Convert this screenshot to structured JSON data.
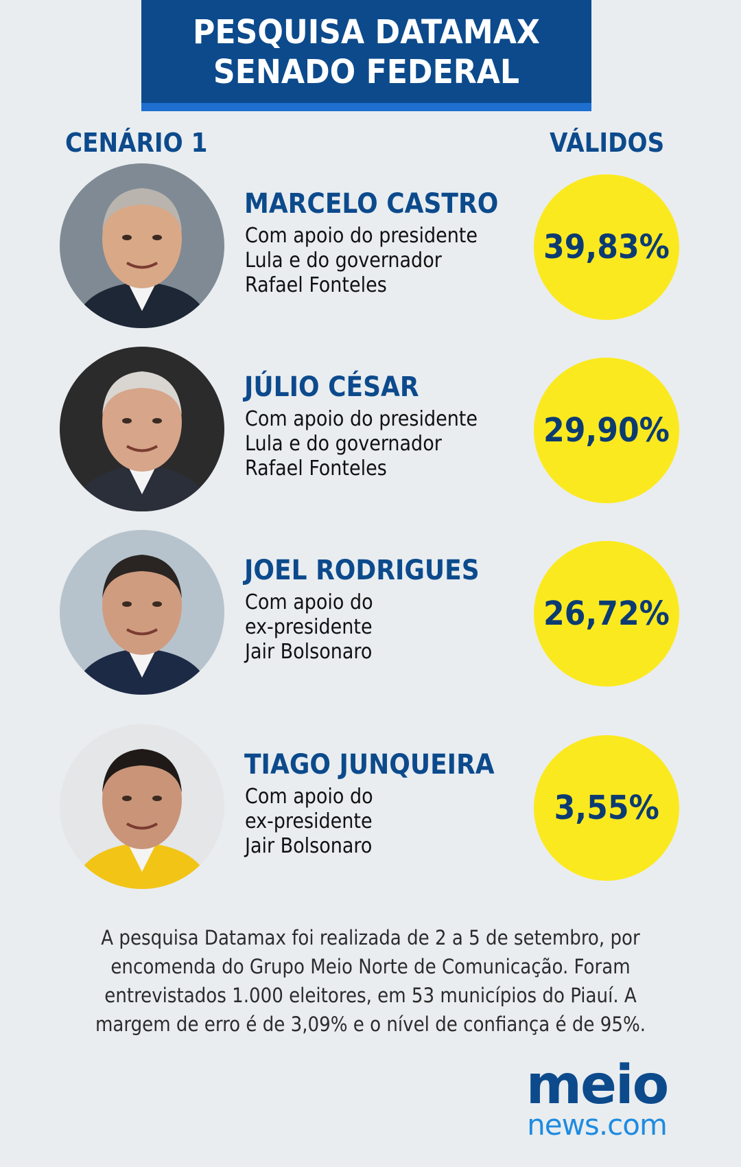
{
  "header": {
    "line1": "PESQUISA DATAMAX",
    "line2": "SENADO FEDERAL"
  },
  "columns": {
    "left": "CENÁRIO 1",
    "right": "VÁLIDOS"
  },
  "chart_data": {
    "type": "table",
    "title": "PESQUISA DATAMAX SENADO FEDERAL",
    "subtitle": "CENÁRIO 1",
    "value_label": "VÁLIDOS",
    "candidates": [
      {
        "name": "MARCELO CASTRO",
        "support": "Com apoio do presidente\nLula e do governador\nRafael Fonteles",
        "value": 39.83,
        "label": "39,83%"
      },
      {
        "name": "JÚLIO CÉSAR",
        "support": "Com apoio do presidente\nLula e do governador\nRafael Fonteles",
        "value": 29.9,
        "label": "29,90%"
      },
      {
        "name": "JOEL RODRIGUES",
        "support": "Com apoio do\nex-presidente\nJair Bolsonaro",
        "value": 26.72,
        "label": "26,72%"
      },
      {
        "name": "TIAGO JUNQUEIRA",
        "support": "Com apoio do\nex-presidente\nJair Bolsonaro",
        "value": 3.55,
        "label": "3,55%"
      }
    ]
  },
  "footnote": "A pesquisa Datamax foi realizada de 2 a 5 de setembro, por encomenda do Grupo Meio Norte de Comunicação. Foram entrevistados 1.000 eleitores, em 53 municípios do Piauí. A margem de erro é de 3,09% e o nível de confiança é de 95%.",
  "logo": {
    "top": "meio",
    "bottom": "news.com"
  },
  "colors": {
    "navy": "#0c4a8c",
    "accent_blue": "#1e6fd0",
    "yellow": "#fbe91f",
    "background": "#e9edf0"
  }
}
